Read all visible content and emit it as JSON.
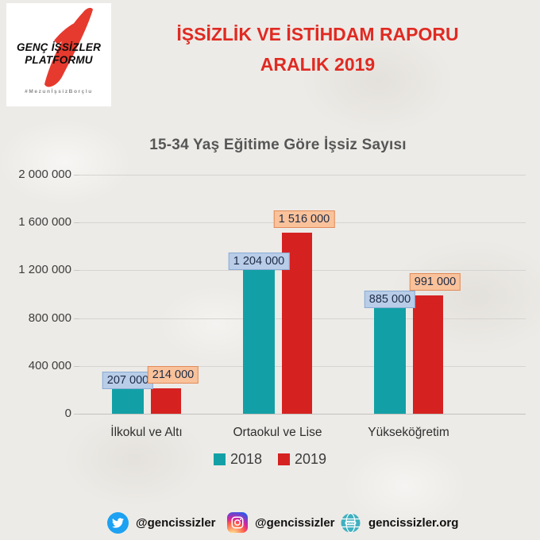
{
  "logo": {
    "line1": "GENÇ İŞSİZLER",
    "line2": "PLATFORMU",
    "hashtag": "#MezunİşsizBorçlu",
    "swoosh_color": "#e63a2e"
  },
  "header": {
    "title_line1": "İŞSİZLİK VE İSTİHDAM RAPORU",
    "title_line2": "ARALIK 2019",
    "title_color": "#e02a22"
  },
  "chart_data": {
    "type": "bar",
    "title": "15-34 Yaş Eğitime Göre İşsiz Sayısı",
    "categories": [
      "İlkokul ve Altı",
      "Ortaokul ve Lise",
      "Yükseköğretim"
    ],
    "series": [
      {
        "name": "2018",
        "color": "#12a0a6",
        "values": [
          207000,
          1204000,
          885000
        ],
        "labels": [
          "207 000",
          "1 204 000",
          "885 000"
        ]
      },
      {
        "name": "2019",
        "color": "#d52221",
        "values": [
          214000,
          1516000,
          991000
        ],
        "labels": [
          "214 000",
          "1 516 000",
          "991 000"
        ]
      }
    ],
    "xlabel": "",
    "ylabel": "",
    "ylim": [
      0,
      2000000
    ],
    "yticks": [
      0,
      400000,
      800000,
      1200000,
      1600000,
      2000000
    ],
    "ytick_labels": [
      "0",
      "400 000",
      "800 000",
      "1 200 000",
      "1 600 000",
      "2 000 000"
    ],
    "grid": "horizontal",
    "legend_position": "bottom"
  },
  "footer": {
    "twitter_handle": "@gencissizler",
    "instagram_handle": "@gencissizler",
    "website": "gencissizler.org"
  }
}
